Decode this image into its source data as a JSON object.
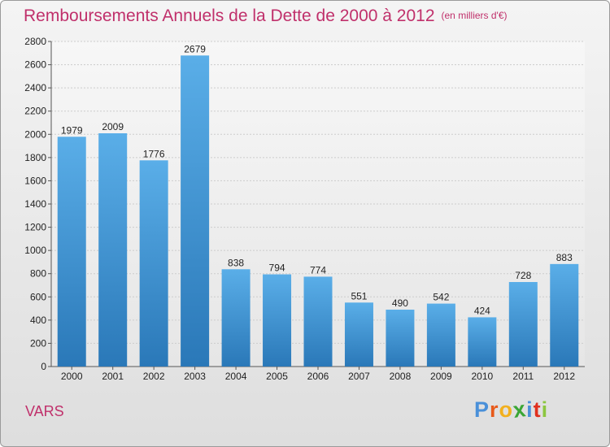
{
  "header": {
    "title": "Remboursements Annuels de la Dette de 2000 à 2012",
    "subtitle": "(en milliers d'€)"
  },
  "footer": {
    "place": "VARS",
    "brand": "Proxiti",
    "brand_letters": [
      "P",
      "r",
      "o",
      "x",
      "i",
      "t",
      "i"
    ],
    "brand_colors": [
      "#4a90d9",
      "#e85a1b",
      "#f2b01e",
      "#3aa635",
      "#4a90d9",
      "#e0301e",
      "#8cc63f"
    ]
  },
  "chart_data": {
    "type": "bar",
    "title": "Remboursements Annuels de la Dette de 2000 à 2012",
    "subtitle": "(en milliers d'€)",
    "categories": [
      "2000",
      "2001",
      "2002",
      "2003",
      "2004",
      "2005",
      "2006",
      "2007",
      "2008",
      "2009",
      "2010",
      "2011",
      "2012"
    ],
    "values": [
      1979,
      2009,
      1776,
      2679,
      838,
      794,
      774,
      551,
      490,
      542,
      424,
      728,
      883
    ],
    "value_labels": [
      "1979",
      "2009",
      "1776",
      "2679",
      "838",
      "794",
      "774",
      "551",
      "490",
      "542",
      "424",
      "728",
      "883"
    ],
    "ylim": [
      0,
      2800
    ],
    "yticks": [
      0,
      200,
      400,
      600,
      800,
      1000,
      1200,
      1400,
      1600,
      1800,
      2000,
      2200,
      2400,
      2600,
      2800
    ],
    "ytick_labels": [
      "0",
      "200",
      "400",
      "600",
      "800",
      "1000",
      "1200",
      "1400",
      "1600",
      "1800",
      "2000",
      "2200",
      "2400",
      "2600",
      "2800"
    ],
    "grid": true,
    "bar_color_top": "#5aaee8",
    "bar_color_bottom": "#2a78b8"
  }
}
